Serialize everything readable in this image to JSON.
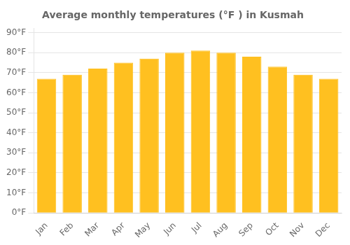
{
  "chart_data": {
    "type": "bar",
    "title": "Average monthly temperatures (°F ) in Kusmah",
    "categories": [
      "Jan",
      "Feb",
      "Mar",
      "Apr",
      "May",
      "Jun",
      "Jul",
      "Aug",
      "Sep",
      "Oct",
      "Nov",
      "Dec"
    ],
    "values": [
      67,
      69,
      72,
      75,
      77,
      80,
      81,
      80,
      78,
      73,
      69,
      67
    ],
    "color": "#FFC020",
    "ylim": [
      0,
      92
    ],
    "yticks": [
      {
        "value": 0,
        "label": "0°F"
      },
      {
        "value": 10,
        "label": "10°F"
      },
      {
        "value": 20,
        "label": "20°F"
      },
      {
        "value": 30,
        "label": "30°F"
      },
      {
        "value": 40,
        "label": "40°F"
      },
      {
        "value": 50,
        "label": "50°F"
      },
      {
        "value": 60,
        "label": "60°F"
      },
      {
        "value": 70,
        "label": "70°F"
      },
      {
        "value": 80,
        "label": "80°F"
      },
      {
        "value": 90,
        "label": "90°F"
      }
    ],
    "grid": true
  }
}
